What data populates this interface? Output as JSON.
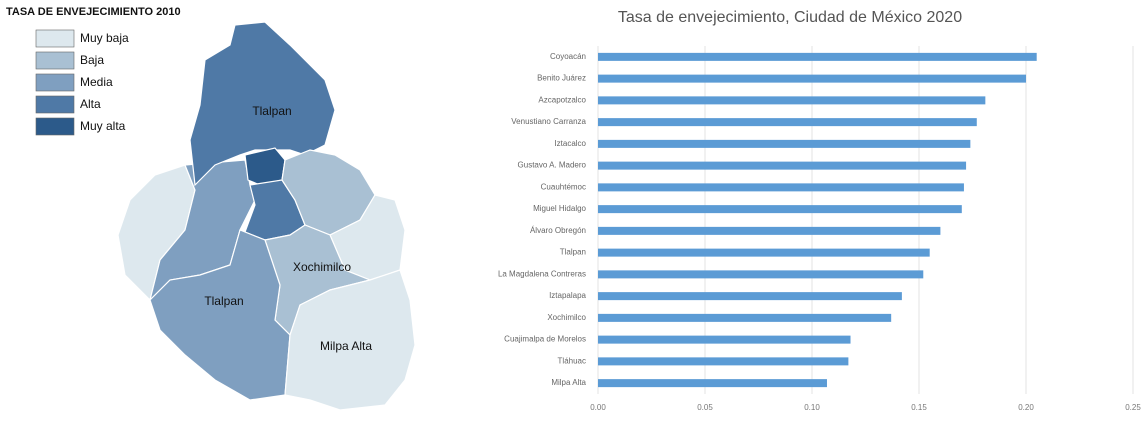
{
  "map": {
    "title": "TASA DE ENVEJECIMIENTO 2010",
    "legend": [
      {
        "label": "Muy baja",
        "color": "#dde8ee"
      },
      {
        "label": "Baja",
        "color": "#a9c0d3"
      },
      {
        "label": "Media",
        "color": "#7f9fc0"
      },
      {
        "label": "Alta",
        "color": "#4f79a6"
      },
      {
        "label": "Muy alta",
        "color": "#2c5a8a"
      }
    ],
    "labels": [
      "Tlalpan",
      "Xochimilco",
      "Tlalpan",
      "Milpa Alta"
    ]
  },
  "chart_data": {
    "type": "hbar",
    "title": "Tasa de envejecimiento, Ciudad de México 2020",
    "categories": [
      "Coyoacán",
      "Benito Juárez",
      "Azcapotzalco",
      "Venustiano Carranza",
      "Iztacalco",
      "Gustavo A. Madero",
      "Cuauhtémoc",
      "Miguel Hidalgo",
      "Álvaro Obregón",
      "Tlalpan",
      "La Magdalena Contreras",
      "Iztapalapa",
      "Xochimilco",
      "Cuajimalpa de Morelos",
      "Tláhuac",
      "Milpa Alta"
    ],
    "values": [
      0.205,
      0.2,
      0.181,
      0.177,
      0.174,
      0.172,
      0.171,
      0.17,
      0.16,
      0.155,
      0.152,
      0.142,
      0.137,
      0.118,
      0.117,
      0.107
    ],
    "color": "#5b9bd5",
    "xlim": [
      0,
      0.25
    ],
    "xticks": [
      {
        "value": 0,
        "label": "0.00"
      },
      0.05,
      {
        "value": 0.1,
        "label": "0.10"
      },
      0.15,
      {
        "value": 0.2,
        "label": "0.20"
      },
      0.25
    ],
    "grid": true
  }
}
